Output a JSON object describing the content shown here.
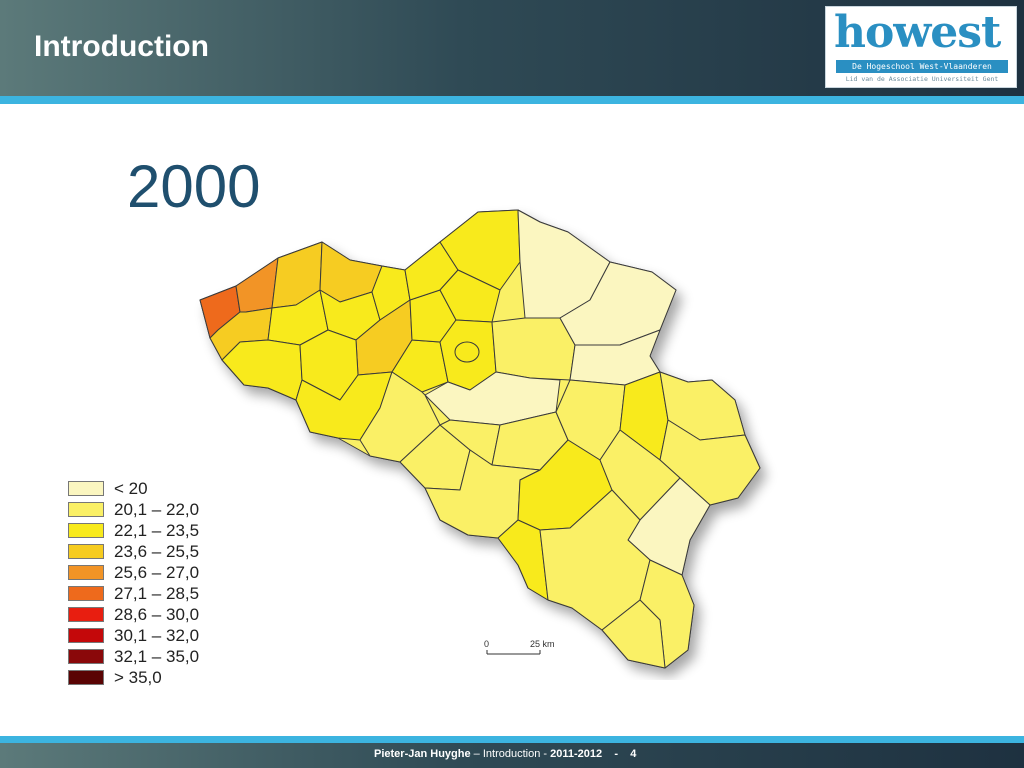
{
  "header": {
    "title": "Introduction"
  },
  "logo": {
    "word": "howest",
    "tagline": "De Hogeschool West-Vlaanderen",
    "subline": "Lid van de Associatie Universiteit Gent"
  },
  "slide": {
    "year": "2000"
  },
  "legend": [
    {
      "label": "< 20",
      "color": "#fbf6c0"
    },
    {
      "label": "20,1 – 22,0",
      "color": "#faf066"
    },
    {
      "label": "22,1 – 23,5",
      "color": "#f8ea1c"
    },
    {
      "label": "23,6 – 25,5",
      "color": "#f6cc20"
    },
    {
      "label": "25,6 – 27,0",
      "color": "#f29426"
    },
    {
      "label": "27,1 – 28,5",
      "color": "#ee6a1c"
    },
    {
      "label": "28,6 – 30,0",
      "color": "#e81e10"
    },
    {
      "label": "30,1 – 32,0",
      "color": "#c4080a"
    },
    {
      "label": "32,1 – 35,0",
      "color": "#8a080a"
    },
    {
      "label": "> 35,0",
      "color": "#5a0404"
    }
  ],
  "scale_bar": {
    "start_label": "0",
    "end_label": "25 km"
  },
  "footer": {
    "author": "Pieter-Jan Huyghe",
    "dash": "–",
    "course": "Introduction",
    "sep": "-",
    "year": "2011-2012",
    "sep2": "-",
    "page": "4"
  }
}
